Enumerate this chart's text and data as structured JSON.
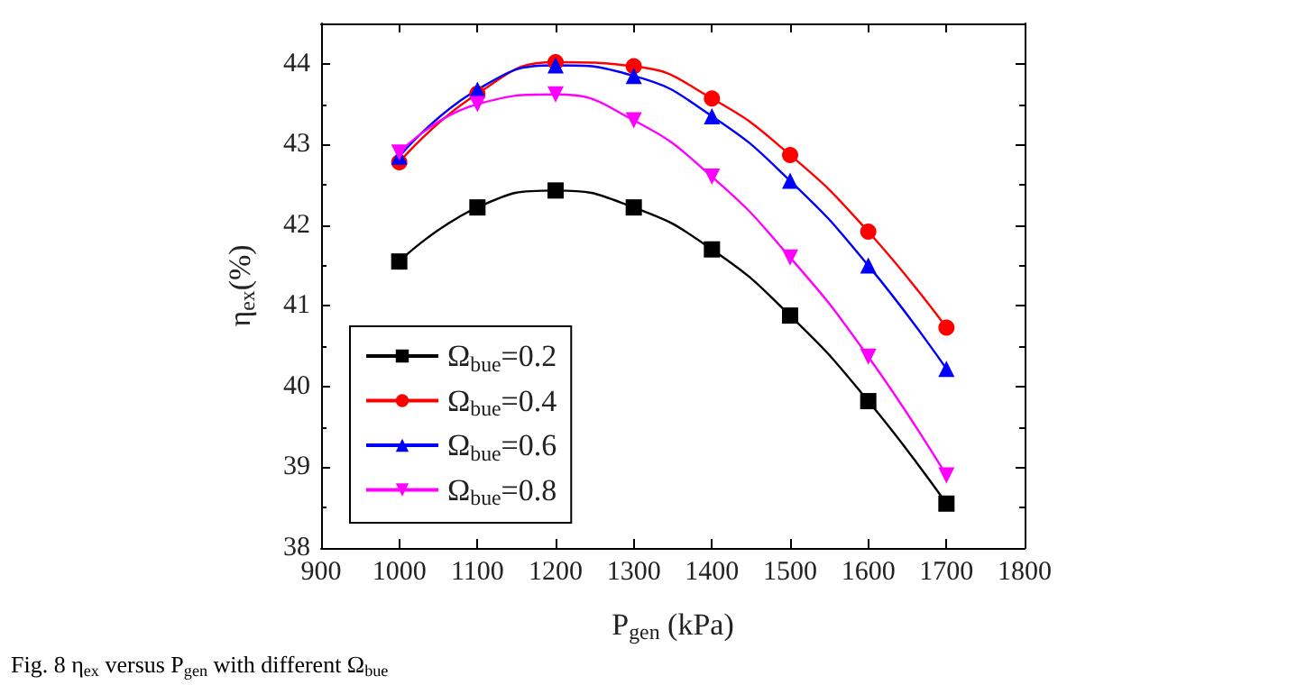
{
  "chart_data": {
    "type": "line",
    "xlabel": "P$_{gen}$ (kPa)",
    "ylabel": "η$_{ex}$(%)",
    "x": [
      1000,
      1100,
      1200,
      1300,
      1400,
      1500,
      1600,
      1700
    ],
    "xlim": [
      900,
      1800
    ],
    "xticks": [
      900,
      1000,
      1100,
      1200,
      1300,
      1400,
      1500,
      1600,
      1700,
      1800
    ],
    "ylim": [
      38,
      44.5
    ],
    "yticks": [
      38,
      39,
      40,
      41,
      42,
      43,
      44
    ],
    "series": [
      {
        "name": "Ω$_{bue}$=0.2",
        "color": "#000000",
        "marker": "square",
        "values": [
          41.55,
          42.22,
          42.43,
          42.22,
          41.7,
          40.88,
          39.82,
          38.55
        ]
      },
      {
        "name": "Ω$_{bue}$=0.4",
        "color": "#ff0000",
        "marker": "circle",
        "values": [
          42.78,
          43.63,
          44.02,
          43.97,
          43.57,
          42.87,
          41.92,
          40.73
        ]
      },
      {
        "name": "Ω$_{bue}$=0.6",
        "color": "#0000ff",
        "marker": "triangle",
        "values": [
          42.85,
          43.68,
          43.98,
          43.85,
          43.35,
          42.55,
          41.5,
          40.22
        ]
      },
      {
        "name": "Ω$_{bue}$=0.8",
        "color": "#ff00ff",
        "marker": "triangle-down",
        "values": [
          42.9,
          43.5,
          43.62,
          43.3,
          42.6,
          41.6,
          40.37,
          38.9
        ]
      }
    ],
    "legend": "bottom left",
    "grid": false,
    "line_style": "solid",
    "annotations": [
      "Fig. 8 η$_{ex}$ versus P$_{gen}$ with different Ω$_{bue}$"
    ]
  }
}
